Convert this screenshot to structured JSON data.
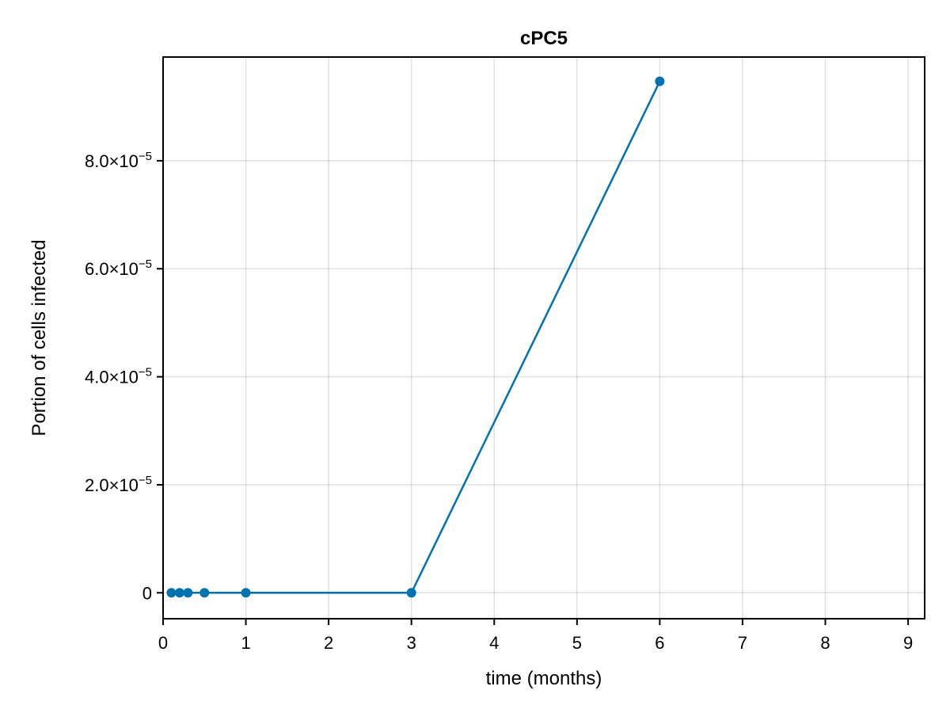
{
  "chart_data": {
    "type": "line",
    "title": "cPC5",
    "xlabel": "time (months)",
    "ylabel": "Portion of cells infected",
    "xlim": [
      0,
      9.2
    ],
    "ylim": [
      -4.8e-06,
      9.92e-05
    ],
    "x_ticks": [
      0,
      1,
      2,
      3,
      4,
      5,
      6,
      7,
      8,
      9
    ],
    "x_tick_labels": [
      "0",
      "1",
      "2",
      "3",
      "4",
      "5",
      "6",
      "7",
      "8",
      "9"
    ],
    "y_ticks": [
      0,
      2e-05,
      4e-05,
      6e-05,
      8e-05
    ],
    "y_tick_labels": [
      {
        "mantissa": "0",
        "exponent": ""
      },
      {
        "mantissa": "2.0×10",
        "exponent": "−5"
      },
      {
        "mantissa": "4.0×10",
        "exponent": "−5"
      },
      {
        "mantissa": "6.0×10",
        "exponent": "−5"
      },
      {
        "mantissa": "8.0×10",
        "exponent": "−5"
      }
    ],
    "grid": true,
    "series": [
      {
        "color": "#0072b2",
        "markers": true,
        "x": [
          0.1,
          0.2,
          0.3,
          0.5,
          1,
          3,
          6
        ],
        "y": [
          0,
          0,
          0,
          0,
          0,
          0,
          9.47e-05
        ]
      }
    ]
  }
}
